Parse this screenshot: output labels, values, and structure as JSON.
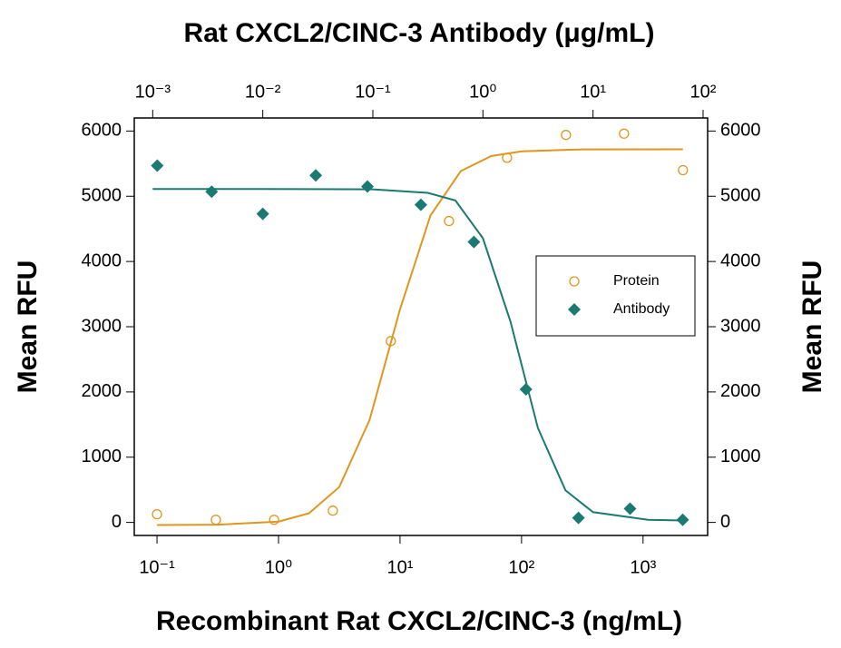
{
  "chart_data": {
    "type": "scatter",
    "title": "Rat CXCL2/CINC-3 Antibody (μg/mL)",
    "x_label": "Recombinant Rat CXCL2/CINC-3 (ng/mL)",
    "y_label": "Mean RFU",
    "y2_label": "Mean RFU",
    "xscale": "log",
    "xlim": [
      0.065,
      3400
    ],
    "xticks": [
      {
        "value": 0.1,
        "label": "10⁻¹"
      },
      {
        "value": 1,
        "label": "10⁰"
      },
      {
        "value": 10,
        "label": "10¹"
      },
      {
        "value": 100,
        "label": "10²"
      },
      {
        "value": 1000,
        "label": "10³"
      }
    ],
    "x2lim": [
      0.00068,
      110
    ],
    "x2ticks": [
      {
        "value": 0.001,
        "label": "10⁻³"
      },
      {
        "value": 0.01,
        "label": "10⁻²"
      },
      {
        "value": 0.1,
        "label": "10⁻¹"
      },
      {
        "value": 1,
        "label": "10⁰"
      },
      {
        "value": 10,
        "label": "10¹"
      },
      {
        "value": 100,
        "label": "10²"
      }
    ],
    "ylim": [
      -200,
      6200
    ],
    "yticks": [
      0,
      1000,
      2000,
      3000,
      4000,
      5000,
      6000
    ],
    "y2lim": [
      -200,
      6200
    ],
    "y2ticks": [
      0,
      1000,
      2000,
      3000,
      4000,
      5000,
      6000
    ],
    "legend": "right",
    "series": [
      {
        "name": "Protein",
        "color": "#e0961e",
        "marker": "circle-open",
        "axis": "x",
        "x": [
          0.1,
          0.305,
          0.92,
          2.8,
          8.4,
          25.3,
          76,
          232,
          697,
          2130
        ],
        "values": [
          125,
          40,
          40,
          180,
          2780,
          4620,
          5590,
          5940,
          5960,
          5400
        ],
        "fit_x": [
          0.1,
          0.316,
          1,
          1.78,
          3.16,
          5.62,
          10,
          17.8,
          31.6,
          56.2,
          100,
          316,
          2130
        ],
        "fit_values": [
          -40,
          -35,
          13,
          139,
          542,
          1573,
          3266,
          4706,
          5386,
          5616,
          5690,
          5718,
          5720
        ]
      },
      {
        "name": "Antibody",
        "color": "#1a7a72",
        "marker": "diamond",
        "axis": "x2",
        "x": [
          0.0011,
          0.00343,
          0.01,
          0.0303,
          0.0893,
          0.273,
          0.828,
          2.46,
          7.38,
          21.7,
          65.3
        ],
        "values": [
          5470,
          5070,
          4730,
          5320,
          5150,
          4870,
          4300,
          2040,
          70,
          210,
          40
        ],
        "fit_x": [
          0.001,
          0.01,
          0.1,
          0.316,
          0.562,
          1,
          1.78,
          3.16,
          5.62,
          10,
          31.6,
          66
        ],
        "fit_values": [
          5110,
          5110,
          5106,
          5052,
          4936,
          4357,
          3078,
          1448,
          492,
          158,
          39,
          30
        ]
      }
    ]
  }
}
